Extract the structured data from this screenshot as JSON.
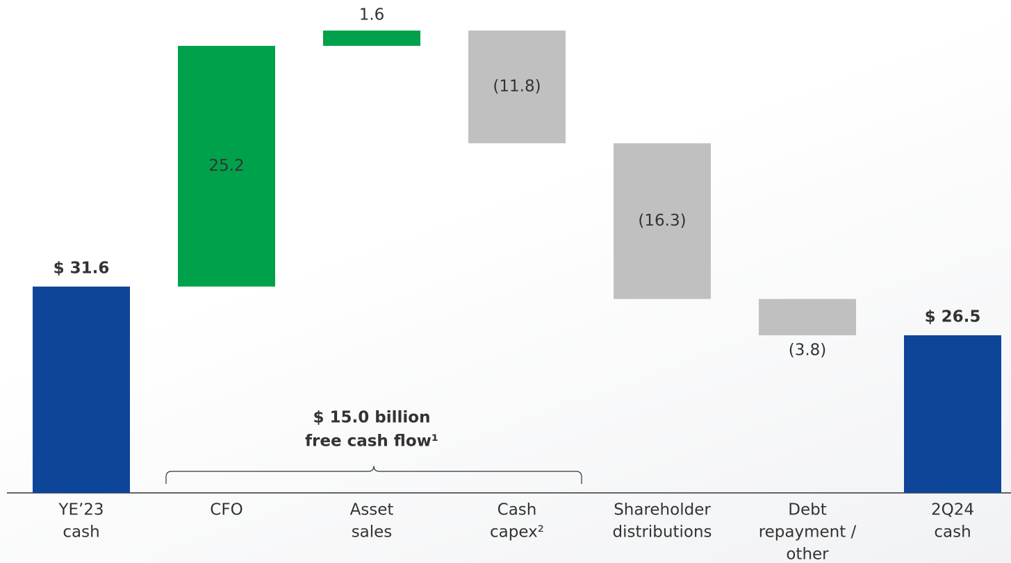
{
  "chart_data": {
    "type": "waterfall",
    "categories": [
      [
        "YE’23",
        "cash"
      ],
      [
        "CFO"
      ],
      [
        "Asset",
        "sales"
      ],
      [
        "Cash",
        "capex²"
      ],
      [
        "Shareholder",
        "distributions"
      ],
      [
        "Debt",
        "repayment /",
        "other"
      ],
      [
        "2Q24",
        "cash"
      ]
    ],
    "measure": [
      "total",
      "relative",
      "relative",
      "relative",
      "relative",
      "relative",
      "total"
    ],
    "values": [
      31.6,
      25.2,
      1.6,
      -11.8,
      -16.3,
      -3.8,
      26.5
    ],
    "value_labels": [
      "$ 31.6",
      "25.2",
      "1.6",
      "(11.8)",
      "(16.3)",
      "(3.8)",
      "$ 26.5"
    ],
    "colors": {
      "total": "#0d4599",
      "increase": "#00a14b",
      "decrease": "#c0c0c0"
    },
    "ylim": [
      10,
      60
    ],
    "annotation": [
      "$ 15.0 billion",
      "free cash flow¹"
    ]
  }
}
